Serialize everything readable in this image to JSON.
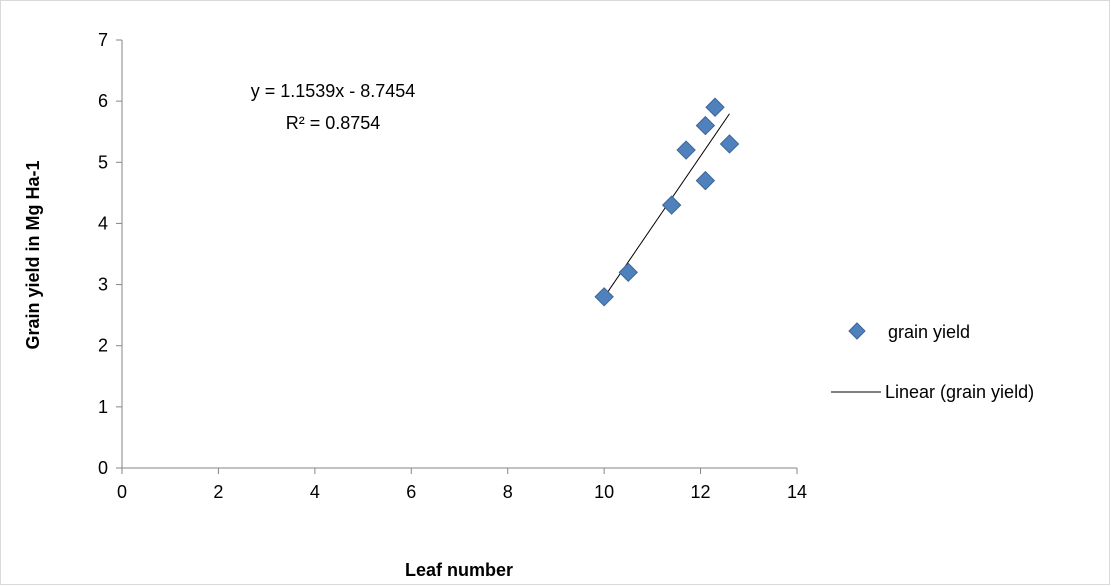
{
  "chart_data": {
    "type": "scatter",
    "title": "",
    "xlabel": "Leaf number",
    "ylabel": "Grain yield in Mg Ha-1",
    "xlim": [
      0,
      14
    ],
    "ylim": [
      0,
      7
    ],
    "x_ticks": [
      0,
      2,
      4,
      6,
      8,
      10,
      12,
      14
    ],
    "y_ticks": [
      0,
      1,
      2,
      3,
      4,
      5,
      6,
      7
    ],
    "grid": false,
    "legend_position": "right",
    "series": [
      {
        "name": "grain yield",
        "type": "scatter",
        "marker": "diamond",
        "color": "#4f81bd",
        "x": [
          10.0,
          10.5,
          11.4,
          11.7,
          12.1,
          12.1,
          12.3,
          12.6
        ],
        "y": [
          2.8,
          3.2,
          4.3,
          5.2,
          4.7,
          5.6,
          5.9,
          5.3
        ]
      },
      {
        "name": "Linear (grain yield)",
        "type": "trendline",
        "color": "#000000",
        "slope": 1.1539,
        "intercept": -8.7454,
        "x_range": [
          10.0,
          12.6
        ]
      }
    ],
    "annotations": {
      "equation": "y = 1.1539x - 8.7454",
      "r_squared": "R² = 0.8754"
    }
  }
}
